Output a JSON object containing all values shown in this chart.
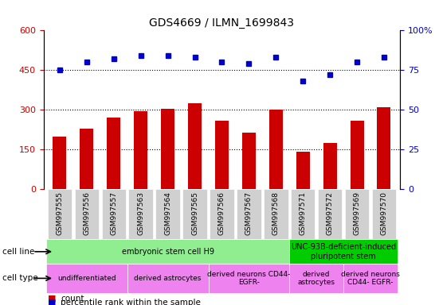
{
  "title": "GDS4669 / ILMN_1699843",
  "samples": [
    "GSM997555",
    "GSM997556",
    "GSM997557",
    "GSM997563",
    "GSM997564",
    "GSM997565",
    "GSM997566",
    "GSM997567",
    "GSM997568",
    "GSM997571",
    "GSM997572",
    "GSM997569",
    "GSM997570"
  ],
  "counts": [
    200,
    230,
    270,
    295,
    305,
    325,
    260,
    215,
    300,
    140,
    175,
    260,
    310
  ],
  "percentiles": [
    75,
    80,
    82,
    84,
    84,
    83,
    80,
    79,
    83,
    68,
    72,
    80,
    83
  ],
  "left_ylim": [
    0,
    600
  ],
  "right_ylim": [
    0,
    100
  ],
  "left_yticks": [
    0,
    150,
    300,
    450,
    600
  ],
  "right_yticks": [
    0,
    25,
    50,
    75,
    100
  ],
  "bar_color": "#cc0000",
  "dot_color": "#0000cc",
  "cell_line_row": [
    {
      "label": "embryonic stem cell H9",
      "start": 0,
      "end": 9,
      "color": "#90ee90"
    },
    {
      "label": "UNC-93B-deficient-induced\npluripotent stem",
      "start": 9,
      "end": 13,
      "color": "#00cc00"
    }
  ],
  "cell_type_row": [
    {
      "label": "undifferentiated",
      "start": 0,
      "end": 3,
      "color": "#ee82ee"
    },
    {
      "label": "derived astrocytes",
      "start": 3,
      "end": 6,
      "color": "#ee82ee"
    },
    {
      "label": "derived neurons CD44-\nEGFR-",
      "start": 6,
      "end": 9,
      "color": "#ee82ee"
    },
    {
      "label": "derived\nastrocytes",
      "start": 9,
      "end": 11,
      "color": "#ee82ee"
    },
    {
      "label": "derived neurons\nCD44- EGFR-",
      "start": 11,
      "end": 13,
      "color": "#ee82ee"
    }
  ],
  "legend_count_color": "#cc0000",
  "legend_pct_color": "#0000cc",
  "tick_label_color_left": "#cc0000",
  "tick_label_color_right": "#0000cc"
}
